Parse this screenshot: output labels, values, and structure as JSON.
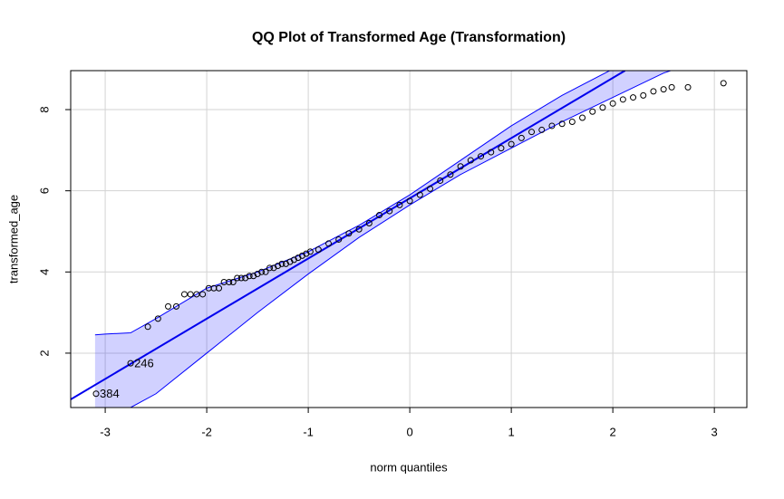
{
  "chart_data": {
    "type": "scatter",
    "title": "QQ Plot of Transformed Age (Transformation)",
    "xlabel": "norm quantiles",
    "ylabel": "transformed_age",
    "x": [
      -3.09,
      -2.75,
      -2.58,
      -2.48,
      -2.38,
      -2.3,
      -2.22,
      -2.16,
      -2.1,
      -2.04,
      -1.98,
      -1.93,
      -1.88,
      -1.83,
      -1.78,
      -1.74,
      -1.7,
      -1.66,
      -1.62,
      -1.58,
      -1.54,
      -1.5,
      -1.46,
      -1.42,
      -1.38,
      -1.34,
      -1.3,
      -1.26,
      -1.22,
      -1.18,
      -1.14,
      -1.1,
      -1.06,
      -1.02,
      -0.98,
      -0.9,
      -0.8,
      -0.7,
      -0.6,
      -0.5,
      -0.4,
      -0.3,
      -0.2,
      -0.1,
      0,
      0.1,
      0.2,
      0.3,
      0.4,
      0.5,
      0.6,
      0.7,
      0.8,
      0.9,
      1.0,
      1.1,
      1.2,
      1.3,
      1.4,
      1.5,
      1.6,
      1.7,
      1.8,
      1.9,
      2.0,
      2.1,
      2.2,
      2.3,
      2.4,
      2.5,
      2.58,
      2.74,
      3.09
    ],
    "y": [
      1.0,
      1.75,
      2.65,
      2.85,
      3.15,
      3.15,
      3.45,
      3.45,
      3.45,
      3.45,
      3.6,
      3.6,
      3.6,
      3.75,
      3.75,
      3.75,
      3.85,
      3.85,
      3.85,
      3.9,
      3.9,
      3.95,
      4.0,
      4.0,
      4.1,
      4.1,
      4.15,
      4.2,
      4.2,
      4.25,
      4.3,
      4.35,
      4.4,
      4.45,
      4.5,
      4.55,
      4.7,
      4.8,
      4.95,
      5.05,
      5.2,
      5.4,
      5.5,
      5.65,
      5.75,
      5.9,
      6.05,
      6.25,
      6.4,
      6.6,
      6.75,
      6.85,
      6.95,
      7.05,
      7.15,
      7.3,
      7.45,
      7.5,
      7.6,
      7.65,
      7.7,
      7.8,
      7.95,
      8.05,
      8.15,
      8.25,
      8.3,
      8.35,
      8.45,
      8.5,
      8.55,
      8.55,
      8.65
    ],
    "point_labels": [
      "384",
      "246",
      null,
      null,
      null,
      null,
      null,
      null,
      null,
      null,
      null,
      null,
      null,
      null,
      null,
      null,
      null,
      null,
      null,
      null,
      null,
      null,
      null,
      null,
      null,
      null,
      null,
      null,
      null,
      null,
      null,
      null,
      null,
      null,
      null,
      null,
      null,
      null,
      null,
      null,
      null,
      null,
      null,
      null,
      null,
      null,
      null,
      null,
      null,
      null,
      null,
      null,
      null,
      null,
      null,
      null,
      null,
      null,
      null,
      null,
      null,
      null,
      null,
      null,
      null,
      null,
      null,
      null,
      null,
      null,
      null,
      null,
      null
    ],
    "color": "#000000",
    "reference_line": {
      "x": [
        -3.34,
        2.12
      ],
      "y": [
        0.86,
        8.96
      ],
      "color": "#0000ee"
    },
    "band": {
      "x": [
        -3.1,
        -3.0,
        -2.75,
        -2.5,
        -2,
        -1.5,
        -1,
        -0.5,
        0,
        0.5,
        1,
        1.5,
        2,
        2.5,
        3.32
      ],
      "upper": [
        2.45,
        2.47,
        2.5,
        2.85,
        3.6,
        4.0,
        4.5,
        5.15,
        5.9,
        6.75,
        7.6,
        8.35,
        9.0,
        9.6,
        10.6
      ],
      "lower": [
        0.3,
        0.4,
        0.66,
        1.0,
        2.0,
        3.0,
        3.95,
        4.85,
        5.65,
        6.4,
        7.05,
        7.7,
        8.3,
        8.9,
        9.6
      ],
      "color": "#0000ff"
    },
    "xlim": [
      -3.34,
      3.32
    ],
    "ylim": [
      0.66,
      8.96
    ],
    "xticks": [
      -3,
      -2,
      -1,
      0,
      1,
      2,
      3
    ],
    "yticks": [
      2,
      4,
      6,
      8
    ],
    "grid": true
  }
}
